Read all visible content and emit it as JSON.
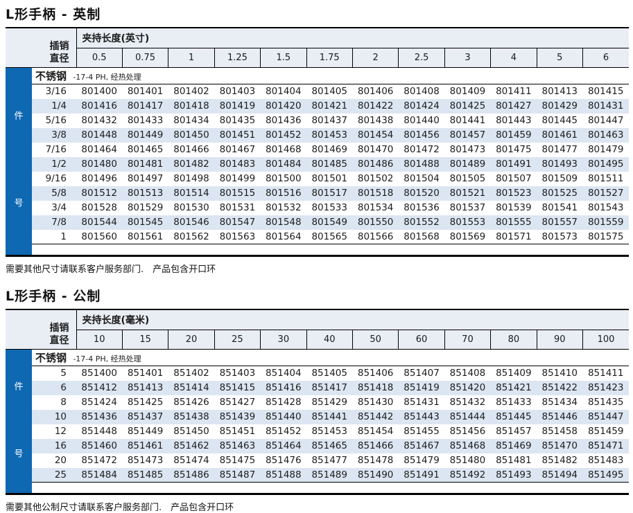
{
  "colors": {
    "accent_blue": "#0f68b2",
    "stripe": "#dce6f2",
    "header_bg": "#e9edf4",
    "border": "#000000"
  },
  "tables": [
    {
      "title": "L形手柄 - 英制",
      "side_label_top": "件",
      "side_label_bottom": "号",
      "diameter_header_line1": "插销",
      "diameter_header_line2": "直径",
      "length_header": "夹持长度(英寸)",
      "material": "不锈钢",
      "material_note": "-17-4 PH, 经热处理",
      "columns": [
        "0.5",
        "0.75",
        "1",
        "1.25",
        "1.5",
        "1.75",
        "2",
        "2.5",
        "3",
        "4",
        "5",
        "6"
      ],
      "rows": [
        {
          "diameter": "3/16",
          "parts": [
            "801400",
            "801401",
            "801402",
            "801403",
            "801404",
            "801405",
            "801406",
            "801408",
            "801409",
            "801411",
            "801413",
            "801415"
          ]
        },
        {
          "diameter": "1/4",
          "parts": [
            "801416",
            "801417",
            "801418",
            "801419",
            "801420",
            "801421",
            "801422",
            "801424",
            "801425",
            "801427",
            "801429",
            "801431"
          ]
        },
        {
          "diameter": "5/16",
          "parts": [
            "801432",
            "801433",
            "801434",
            "801435",
            "801436",
            "801437",
            "801438",
            "801440",
            "801441",
            "801443",
            "801445",
            "801447"
          ]
        },
        {
          "diameter": "3/8",
          "parts": [
            "801448",
            "801449",
            "801450",
            "801451",
            "801452",
            "801453",
            "801454",
            "801456",
            "801457",
            "801459",
            "801461",
            "801463"
          ]
        },
        {
          "diameter": "7/16",
          "parts": [
            "801464",
            "801465",
            "801466",
            "801467",
            "801468",
            "801469",
            "801470",
            "801472",
            "801473",
            "801475",
            "801477",
            "801479"
          ]
        },
        {
          "diameter": "1/2",
          "parts": [
            "801480",
            "801481",
            "801482",
            "801483",
            "801484",
            "801485",
            "801486",
            "801488",
            "801489",
            "801491",
            "801493",
            "801495"
          ]
        },
        {
          "diameter": "9/16",
          "parts": [
            "801496",
            "801497",
            "801498",
            "801499",
            "801500",
            "801501",
            "801502",
            "801504",
            "801505",
            "801507",
            "801509",
            "801511"
          ]
        },
        {
          "diameter": "5/8",
          "parts": [
            "801512",
            "801513",
            "801514",
            "801515",
            "801516",
            "801517",
            "801518",
            "801520",
            "801521",
            "801523",
            "801525",
            "801527"
          ]
        },
        {
          "diameter": "3/4",
          "parts": [
            "801528",
            "801529",
            "801530",
            "801531",
            "801532",
            "801533",
            "801534",
            "801536",
            "801537",
            "801539",
            "801541",
            "801543"
          ]
        },
        {
          "diameter": "7/8",
          "parts": [
            "801544",
            "801545",
            "801546",
            "801547",
            "801548",
            "801549",
            "801550",
            "801552",
            "801553",
            "801555",
            "801557",
            "801559"
          ]
        },
        {
          "diameter": "1",
          "parts": [
            "801560",
            "801561",
            "801562",
            "801563",
            "801564",
            "801565",
            "801566",
            "801568",
            "801569",
            "801571",
            "801573",
            "801575"
          ]
        }
      ],
      "footnote": "需要其他尺寸请联系客户服务部门.　产品包含开口环"
    },
    {
      "title": "L形手柄 - 公制",
      "side_label_top": "件",
      "side_label_bottom": "号",
      "diameter_header_line1": "插销",
      "diameter_header_line2": "直径",
      "length_header": "夹持长度(毫米)",
      "material": "不锈钢",
      "material_note": "-17-4 PH, 经热处理",
      "columns": [
        "10",
        "15",
        "20",
        "25",
        "30",
        "40",
        "50",
        "60",
        "70",
        "80",
        "90",
        "100"
      ],
      "rows": [
        {
          "diameter": "5",
          "parts": [
            "851400",
            "851401",
            "851402",
            "851403",
            "851404",
            "851405",
            "851406",
            "851407",
            "851408",
            "851409",
            "851410",
            "851411"
          ]
        },
        {
          "diameter": "6",
          "parts": [
            "851412",
            "851413",
            "851414",
            "851415",
            "851416",
            "851417",
            "851418",
            "851419",
            "851420",
            "851421",
            "851422",
            "851423"
          ]
        },
        {
          "diameter": "8",
          "parts": [
            "851424",
            "851425",
            "851426",
            "851427",
            "851428",
            "851429",
            "851430",
            "851431",
            "851432",
            "851433",
            "851434",
            "851435"
          ]
        },
        {
          "diameter": "10",
          "parts": [
            "851436",
            "851437",
            "851438",
            "851439",
            "851440",
            "851441",
            "851442",
            "851443",
            "851444",
            "851445",
            "851446",
            "851447"
          ]
        },
        {
          "diameter": "12",
          "parts": [
            "851448",
            "851449",
            "851450",
            "851451",
            "851452",
            "851453",
            "851454",
            "851455",
            "851456",
            "851457",
            "851458",
            "851459"
          ]
        },
        {
          "diameter": "16",
          "parts": [
            "851460",
            "851461",
            "851462",
            "851463",
            "851464",
            "851465",
            "851466",
            "851467",
            "851468",
            "851469",
            "851470",
            "851471"
          ]
        },
        {
          "diameter": "20",
          "parts": [
            "851472",
            "851473",
            "851474",
            "851475",
            "851476",
            "851477",
            "851478",
            "851479",
            "851480",
            "851481",
            "851482",
            "851483"
          ]
        },
        {
          "diameter": "25",
          "parts": [
            "851484",
            "851485",
            "851486",
            "851487",
            "851488",
            "851489",
            "851490",
            "851491",
            "851492",
            "851493",
            "851494",
            "851495"
          ]
        }
      ],
      "footnote": "需要其他公制尺寸请联系客户服务部门.　产品包含开口环"
    }
  ]
}
